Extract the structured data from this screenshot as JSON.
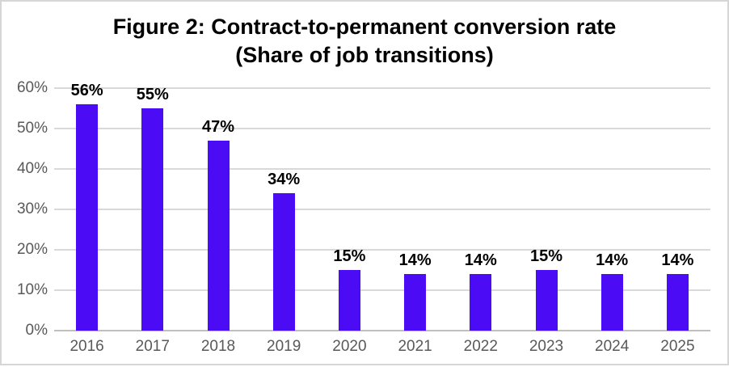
{
  "chart_data": {
    "type": "bar",
    "title_line1": "Figure 2: Contract-to-permanent conversion rate",
    "title_line2": "(Share of job transitions)",
    "categories": [
      "2016",
      "2017",
      "2018",
      "2019",
      "2020",
      "2021",
      "2022",
      "2023",
      "2024",
      "2025"
    ],
    "values": [
      56,
      55,
      47,
      34,
      15,
      14,
      14,
      15,
      14,
      14
    ],
    "data_labels": [
      "56%",
      "55%",
      "47%",
      "34%",
      "15%",
      "14%",
      "14%",
      "15%",
      "14%",
      "14%"
    ],
    "y_ticks": [
      {
        "value": 0,
        "label": "0%"
      },
      {
        "value": 10,
        "label": "10%"
      },
      {
        "value": 20,
        "label": "20%"
      },
      {
        "value": 30,
        "label": "30%"
      },
      {
        "value": 40,
        "label": "40%"
      },
      {
        "value": 50,
        "label": "50%"
      },
      {
        "value": 60,
        "label": "60%"
      }
    ],
    "ylim": [
      0,
      60
    ],
    "grid": true,
    "legend": "none",
    "colors": {
      "bar": "#4c0bf5",
      "gridline": "#d9d9d9",
      "axis_line": "#bfbfbf",
      "tick_label": "#595959",
      "data_label": "#000000",
      "frame_border": "#d6d6d6"
    }
  }
}
